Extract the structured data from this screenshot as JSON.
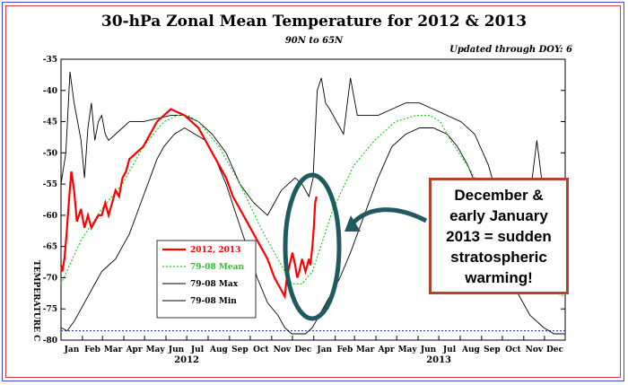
{
  "header": {
    "title": "30-hPa Zonal Mean Temperature for 2012 & 2013",
    "subtitle": "90N to 65N",
    "updated": "Updated through DOY:  6"
  },
  "chart_data": {
    "type": "line",
    "title": "30-hPa Zonal Mean Temperature for 2012 & 2013",
    "subtitle": "90N to 65N",
    "ylabel": "TEMPERATURE C",
    "ylim": [
      -80,
      -35
    ],
    "yticks": [
      -80,
      -75,
      -70,
      -65,
      -60,
      -55,
      -50,
      -45,
      -40,
      -35
    ],
    "month_labels": [
      "Jan",
      "Feb",
      "Mar",
      "Apr",
      "May",
      "Jun",
      "Jul",
      "Aug",
      "Sep",
      "Oct",
      "Nov",
      "Dec",
      "Jan",
      "Feb",
      "Mar",
      "Apr",
      "May",
      "Jun",
      "Jul",
      "Aug",
      "Sep",
      "Oct",
      "Nov",
      "Dec"
    ],
    "year_labels": [
      "2012",
      "2013"
    ],
    "legend_position": "lower-left",
    "legend": [
      "2012, 2013",
      "79-08 Mean",
      "79-08 Max",
      "79-08 Min"
    ],
    "series": [
      {
        "name": "2012, 2013",
        "color": "#ff0000",
        "x": [
          1,
          3,
          6,
          9,
          13,
          16,
          20,
          24,
          30,
          35,
          40,
          45,
          50,
          55,
          60,
          65,
          70,
          75,
          80,
          85,
          90,
          95,
          100,
          110,
          120,
          130,
          140,
          150,
          160,
          170,
          180,
          190,
          200,
          210,
          220,
          230,
          240,
          250,
          260,
          270,
          280,
          290,
          300,
          310,
          320,
          325,
          328,
          332,
          336,
          340,
          343,
          346,
          350,
          355,
          360,
          362,
          365,
          367,
          369,
          371
        ],
        "values": [
          -68,
          -69,
          -67,
          -63,
          -57,
          -53,
          -56,
          -61,
          -59,
          -62,
          -60,
          -62,
          -61,
          -60,
          -60,
          -58,
          -60,
          -58,
          -56,
          -57,
          -54,
          -53,
          -51,
          -50,
          -49,
          -47,
          -45,
          -44,
          -43,
          -43.5,
          -44,
          -45,
          -46,
          -48,
          -50,
          -52,
          -54,
          -57,
          -59,
          -61,
          -63,
          -65,
          -67,
          -70,
          -72,
          -73,
          -70,
          -68,
          -66,
          -68,
          -70,
          -69,
          -67,
          -69,
          -67,
          -68,
          -65,
          -62,
          -58,
          -57
        ]
      },
      {
        "name": "79-08 Mean",
        "color": "#22cc22",
        "x": [
          1,
          30,
          60,
          90,
          120,
          150,
          170,
          185,
          200,
          230,
          260,
          290,
          320,
          335,
          350,
          365,
          380,
          395,
          425,
          455,
          485,
          515,
          535,
          550,
          565,
          595,
          625,
          655,
          685,
          710,
          730
        ],
        "values": [
          -71,
          -64,
          -59,
          -55,
          -49,
          -45,
          -44,
          -44,
          -45,
          -49,
          -55,
          -62,
          -68,
          -71,
          -71,
          -69,
          -64,
          -59,
          -52,
          -48,
          -45,
          -44,
          -44,
          -45,
          -48,
          -53,
          -60,
          -66,
          -70,
          -72,
          -73
        ]
      },
      {
        "name": "79-08 Max",
        "color": "#000000",
        "x": [
          1,
          8,
          14,
          20,
          25,
          30,
          35,
          40,
          45,
          50,
          55,
          60,
          65,
          70,
          80,
          90,
          100,
          120,
          140,
          160,
          180,
          200,
          220,
          240,
          260,
          280,
          300,
          310,
          320,
          330,
          340,
          350,
          360,
          366,
          372,
          378,
          384,
          390,
          400,
          410,
          420,
          430,
          445,
          460,
          480,
          500,
          520,
          540,
          560,
          580,
          600,
          620,
          640,
          660,
          670,
          680,
          690,
          700,
          710,
          720,
          730
        ],
        "values": [
          -55,
          -50,
          -37,
          -42,
          -45,
          -48,
          -54,
          -46,
          -42,
          -48,
          -45,
          -44,
          -47,
          -48,
          -47,
          -46,
          -45,
          -45,
          -44.5,
          -44,
          -44,
          -45,
          -47,
          -50,
          -55,
          -58,
          -60,
          -58,
          -56,
          -55,
          -54,
          -55,
          -57,
          -54,
          -40,
          -38,
          -42,
          -43,
          -45,
          -47,
          -38,
          -44,
          -44,
          -44,
          -43,
          -42,
          -42,
          -43,
          -44,
          -45,
          -47,
          -52,
          -60,
          -65,
          -70,
          -57,
          -48,
          -57,
          -60,
          -58,
          -57
        ]
      },
      {
        "name": "79-08 Min",
        "color": "#000000",
        "x": [
          1,
          10,
          20,
          30,
          40,
          50,
          60,
          70,
          80,
          90,
          100,
          110,
          120,
          130,
          140,
          150,
          165,
          180,
          195,
          210,
          225,
          240,
          255,
          270,
          285,
          300,
          315,
          325,
          335,
          345,
          355,
          365,
          375,
          385,
          395,
          405,
          420,
          440,
          460,
          480,
          500,
          520,
          540,
          560,
          575,
          590,
          605,
          620,
          640,
          660,
          680,
          700,
          715,
          730
        ],
        "values": [
          -78,
          -78.5,
          -77,
          -75,
          -73,
          -71,
          -69,
          -68,
          -67,
          -65,
          -63,
          -60,
          -57,
          -54,
          -51,
          -49,
          -47,
          -46,
          -47,
          -48,
          -51,
          -55,
          -60,
          -65,
          -70,
          -74,
          -76,
          -78,
          -79,
          -79,
          -79,
          -78,
          -76,
          -74,
          -72,
          -70,
          -66,
          -60,
          -54,
          -49,
          -47,
          -46,
          -46,
          -47,
          -49,
          -52,
          -56,
          -61,
          -67,
          -72,
          -76,
          -78,
          -79,
          -79
        ]
      }
    ],
    "baseline": {
      "value": -78.5,
      "color": "#1f3fbf"
    }
  },
  "annotation": {
    "text": "December & early January 2013  = sudden stratospheric warming!",
    "color": "#b04431",
    "ellipse_color": "#1e5a5f"
  }
}
